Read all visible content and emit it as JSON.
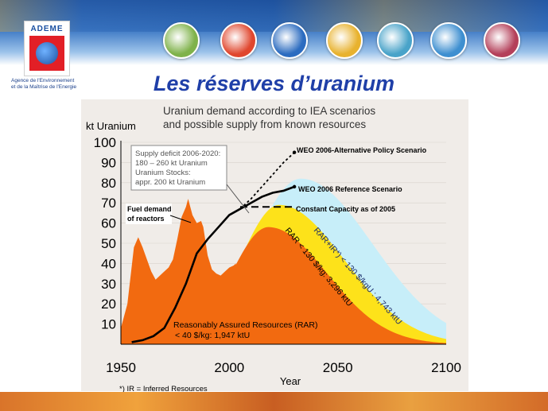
{
  "header": {
    "logo_text": "ADEME",
    "agency_line1": "Agence de l'Environnement",
    "agency_line2": "et de la Maîtrise de l'Energie",
    "icons": [
      {
        "name": "balloon-icon",
        "color": "#7fb24a"
      },
      {
        "name": "france-map-icon",
        "color": "#e0472e"
      },
      {
        "name": "sun-icon",
        "color": "#2c6cc0"
      },
      {
        "name": "house-icon",
        "color": "#e8b22e"
      },
      {
        "name": "graph-icon",
        "color": "#49a3c9"
      },
      {
        "name": "zigzag-icon",
        "color": "#3e8fd0"
      },
      {
        "name": "hammer-icon",
        "color": "#b4405a"
      }
    ]
  },
  "slide": {
    "title": "Les réserves d’uranium"
  },
  "chart_data": {
    "type": "area",
    "title": "Uranium demand according to IEA scenarios",
    "subtitle": "and possible supply from known resources",
    "ylabel": "kt Uranium",
    "xlabel": "Year",
    "xlim": [
      1950,
      2100
    ],
    "ylim": [
      0,
      100
    ],
    "xticks": [
      1950,
      2000,
      2050,
      2100
    ],
    "yticks": [
      10,
      20,
      30,
      40,
      50,
      60,
      70,
      80,
      90,
      100
    ],
    "footnote": "*) IR = Inferred Resources",
    "colors": {
      "production": "#f26a10",
      "rar40": "#f26a10",
      "rar130": "#fde21a",
      "rarir": "#c7eef9",
      "demand": "#000000"
    },
    "series": [
      {
        "name": "Fuel demand of reactors",
        "points": [
          [
            1955,
            1
          ],
          [
            1960,
            2
          ],
          [
            1965,
            4
          ],
          [
            1970,
            8
          ],
          [
            1975,
            18
          ],
          [
            1980,
            30
          ],
          [
            1985,
            45
          ],
          [
            1990,
            52
          ],
          [
            1995,
            58
          ],
          [
            2000,
            64
          ],
          [
            2005,
            67
          ],
          [
            2010,
            70
          ],
          [
            2015,
            73
          ],
          [
            2020,
            75
          ],
          [
            2025,
            76
          ],
          [
            2030,
            78
          ]
        ]
      },
      {
        "name": "WEO 2006-Alternative Policy Scenario",
        "points": [
          [
            2005,
            67
          ],
          [
            2010,
            72
          ],
          [
            2015,
            78
          ],
          [
            2020,
            84
          ],
          [
            2025,
            90
          ],
          [
            2030,
            95
          ]
        ]
      },
      {
        "name": "Constant Capacity as of 2005",
        "points": [
          [
            2005,
            68
          ],
          [
            2030,
            68
          ]
        ]
      }
    ],
    "production": [
      [
        1950,
        8
      ],
      [
        1953,
        20
      ],
      [
        1956,
        48
      ],
      [
        1958,
        53
      ],
      [
        1960,
        48
      ],
      [
        1962,
        42
      ],
      [
        1964,
        36
      ],
      [
        1966,
        32
      ],
      [
        1968,
        34
      ],
      [
        1970,
        36
      ],
      [
        1972,
        38
      ],
      [
        1974,
        42
      ],
      [
        1976,
        52
      ],
      [
        1978,
        63
      ],
      [
        1980,
        68
      ],
      [
        1981,
        72
      ],
      [
        1983,
        64
      ],
      [
        1985,
        60
      ],
      [
        1987,
        61
      ],
      [
        1988,
        58
      ],
      [
        1990,
        44
      ],
      [
        1992,
        37
      ],
      [
        1994,
        35
      ],
      [
        1996,
        34
      ],
      [
        1998,
        36
      ],
      [
        2000,
        38
      ],
      [
        2002,
        39
      ],
      [
        2003,
        40
      ],
      [
        2004,
        0
      ]
    ],
    "supply": [
      {
        "name": "RAR+IR*) < 130 $/kgU : 4,743 ktU",
        "peak_year": 2033,
        "peak_value": 82
      },
      {
        "name": "RAR < 130 $/kg: 3,296 ktU",
        "peak_year": 2023,
        "peak_value": 69
      },
      {
        "name": "Reasonably Assured Resources (RAR) < 40 $/kg: 1,947 ktU",
        "peak_year": 2018,
        "peak_value": 58
      }
    ],
    "annotations": {
      "supply_deficit_line1": "Supply deficit 2006-2020:",
      "supply_deficit_line2": "180 – 260 kt Uranium",
      "supply_deficit_line3": "Uranium Stocks:",
      "supply_deficit_line4": "appr. 200 kt Uranium",
      "fuel_demand_line1": "Fuel demand",
      "fuel_demand_line2": "of reactors",
      "alt_policy": "WEO 2006-Alternative Policy Scenario",
      "reference": "WEO 2006 Reference Scenario",
      "constant_capacity": "Constant Capacity as of 2005",
      "rarir_label": "RAR+IR*) < 130 $/kgU : 4,743 ktU",
      "rar130_label": "RAR < 130 $/kg: 3,296 ktU",
      "rar40_line1": "Reasonably Assured Resources (RAR)",
      "rar40_line2": "< 40 $/kg: 1,947 ktU"
    }
  }
}
